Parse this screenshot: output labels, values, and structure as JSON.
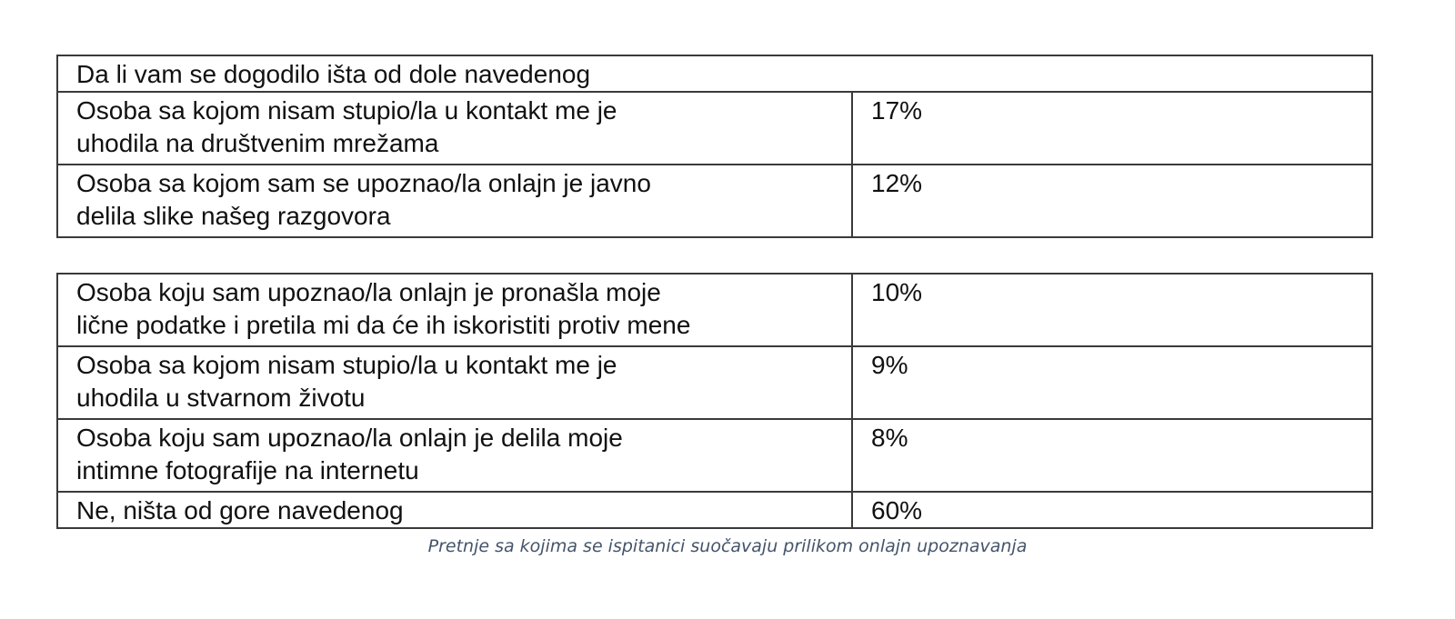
{
  "table": {
    "header": "Da li vam se dogodilo išta od dole navedenog",
    "top_rows": [
      {
        "label_lines": [
          "Osoba sa kojom nisam stupio/la u kontakt me je",
          "uhodila na društvenim mrežama"
        ],
        "value": "17%"
      },
      {
        "label_lines": [
          "Osoba sa kojom sam se upoznao/la onlajn je javno",
          "delila slike našeg razgovora"
        ],
        "value": "12%"
      }
    ],
    "bottom_rows": [
      {
        "label_lines": [
          "Osoba koju sam upoznao/la onlajn je pronašla moje",
          "lične podatke i pretila mi da će ih iskoristiti protiv mene"
        ],
        "value": "10%"
      },
      {
        "label_lines": [
          "Osoba sa kojom nisam stupio/la u kontakt me je",
          "uhodila u stvarnom životu"
        ],
        "value": "9%"
      },
      {
        "label_lines": [
          "Osoba koju sam upoznao/la onlajn je delila moje",
          "intimne fotografije na internetu"
        ],
        "value": "8%"
      },
      {
        "label_lines": [
          "Ne, ništa od gore navedenog"
        ],
        "value": "60%"
      }
    ]
  },
  "caption": "Pretnje sa kojima se ispitanici suočavaju prilikom onlajn upoznavanja"
}
